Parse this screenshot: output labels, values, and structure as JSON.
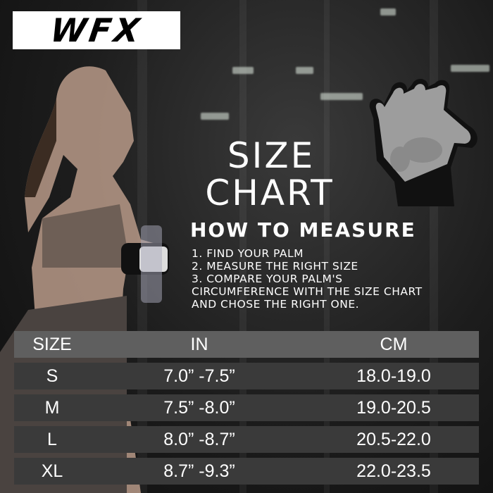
{
  "brand": {
    "logo_text": "WFX"
  },
  "heading": {
    "line1": "SIZE",
    "line2": "CHART"
  },
  "how_to": {
    "title": "HOW TO MEASURE",
    "steps": [
      "1. FIND YOUR PALM",
      "2. MEASURE THE RIGHT SIZE",
      "3. COMPARE YOUR PALM'S",
      "CIRCUMFERENCE WITH THE SIZE CHART",
      "AND CHOSE THE RIGHT ONE."
    ]
  },
  "size_table": {
    "headers": [
      "SIZE",
      "IN",
      "CM"
    ],
    "rows": [
      [
        "S",
        "7.0” -7.5”",
        "18.0-19.0"
      ],
      [
        "M",
        "7.5” -8.0”",
        "19.0-20.5"
      ],
      [
        "L",
        "8.0” -8.7”",
        "20.5-22.0"
      ],
      [
        "XL",
        "8.7” -9.3”",
        "22.0-23.5"
      ]
    ]
  },
  "images": {
    "model": "woman-wearing-glove-photo",
    "product": "fitness-glove-palm-photo"
  }
}
